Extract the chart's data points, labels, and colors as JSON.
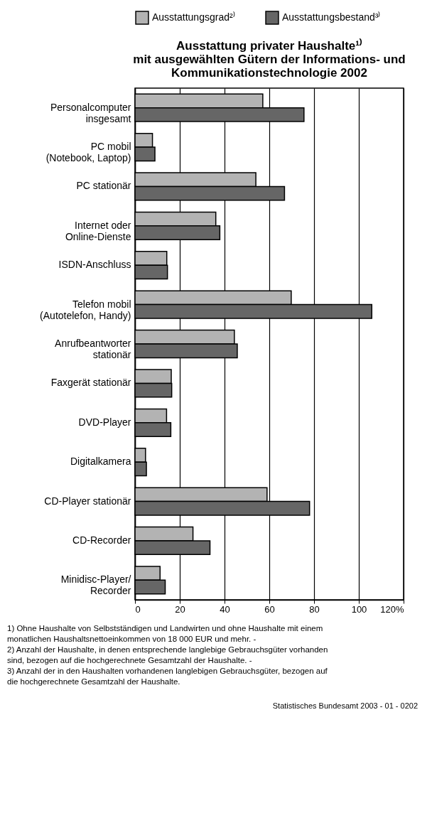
{
  "chart_data": {
    "type": "bar",
    "orientation": "horizontal",
    "title": [
      "Ausstattung privater Haushalte¹⁾",
      "mit ausgewählten Gütern der Informations- und",
      "Kommunikationstechnologie 2002"
    ],
    "categories": [
      "Personalcomputer\ninsgesamt",
      "PC mobil\n(Notebook, Laptop)",
      "PC stationär",
      "Internet oder\nOnline-Dienste",
      "ISDN-Anschluss",
      "Telefon mobil\n(Autotelefon, Handy)",
      "Anrufbeantworter\nstationär",
      "Faxgerät stationär",
      "DVD-Player",
      "Digitalkamera",
      "CD-Player stationär",
      "CD-Recorder",
      "Minidisc-Player/\nRecorder"
    ],
    "series": [
      {
        "name": "Ausstattungsgrad²⁾",
        "color": "#b3b3b3",
        "values": [
          57.1,
          7.8,
          54.0,
          36.1,
          14.2,
          69.8,
          44.4,
          16.2,
          14.1,
          4.7,
          59.0,
          25.9,
          11.2
        ]
      },
      {
        "name": "Ausstattungsbestand³⁾",
        "color": "#666666",
        "values": [
          75.5,
          8.9,
          66.8,
          37.9,
          14.5,
          105.8,
          45.7,
          16.4,
          16.0,
          5.1,
          78.0,
          33.5,
          13.5
        ]
      }
    ],
    "xlim": [
      0,
      120
    ],
    "xticks": [
      0,
      20,
      40,
      60,
      80,
      100,
      {
        "value": 120,
        "label": "120%"
      }
    ],
    "grid": "x",
    "legend": "top",
    "annotations": [
      "1) Ohne Haushalte von Selbstständigen und Landwirten und ohne Haushalte mit einem monatlichen Haushaltsnettoeinkommen von 18 000 EUR und mehr. -",
      "2) Anzahl der Haushalte, in denen entsprechende langlebige Gebrauchsgüter vorhanden sind, bezogen auf die hochgerechnete Gesamtzahl der Haushalte. -",
      "3) Anzahl der in den Haushalten vorhandenen langlebigen Gebrauchsgüter, bezogen auf die hochgerechnete Gesamtzahl der Haushalte.",
      "Statistisches Bundesamt 2003 - 01 - 0202"
    ]
  }
}
